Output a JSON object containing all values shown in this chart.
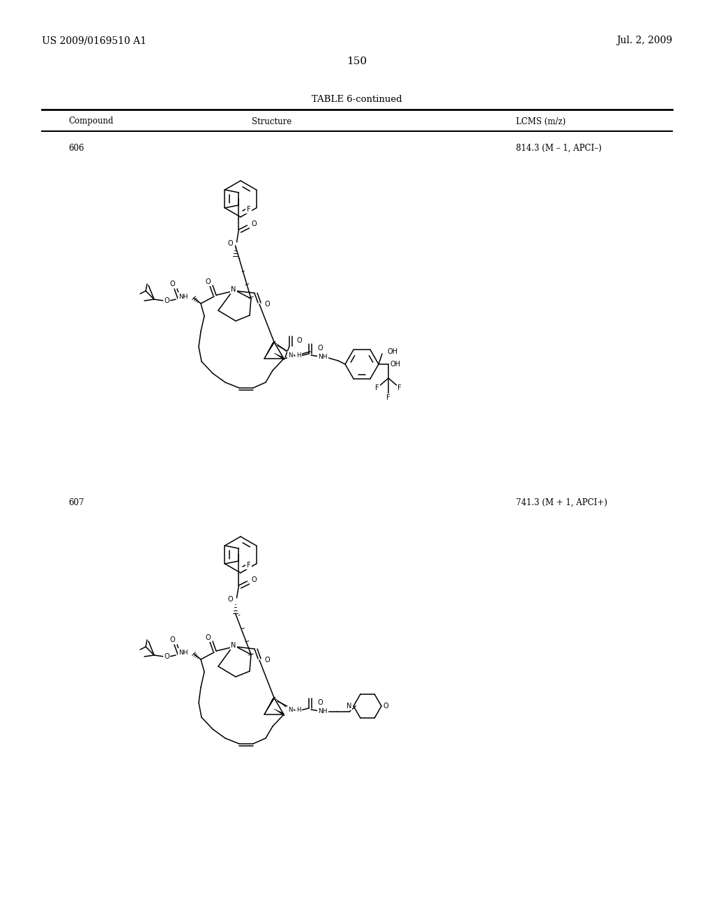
{
  "page_number": "150",
  "patent_left": "US 2009/0169510 A1",
  "patent_right": "Jul. 2, 2009",
  "table_title": "TABLE 6-continued",
  "col_compound": "Compound",
  "col_structure": "Structure",
  "col_lcms": "LCMS (m/z)",
  "compound_606": "606",
  "lcms_606": "814.3 (M – 1, APCI–)",
  "compound_607": "607",
  "lcms_607": "741.3 (M + 1, APCI+)",
  "bg_color": "#ffffff",
  "text_color": "#000000",
  "line_color": "#000000"
}
